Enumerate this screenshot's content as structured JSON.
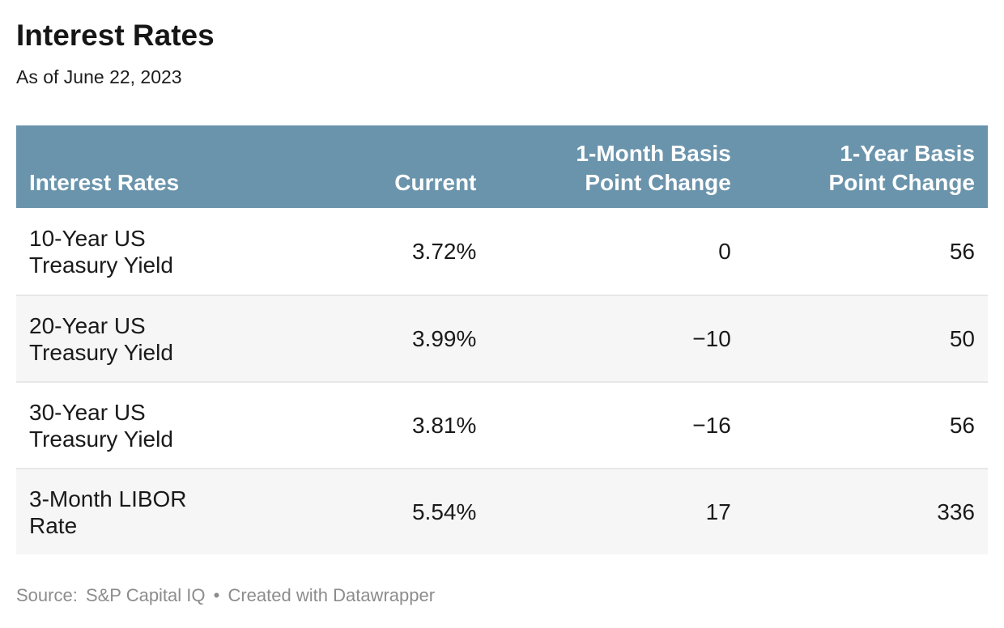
{
  "header": {
    "title": "Interest Rates",
    "subtitle": "As of June 22, 2023"
  },
  "table": {
    "columns": {
      "label": "Interest Rates",
      "current": "Current",
      "change_1m": "1-Month Basis\nPoint Change",
      "change_1y": "1-Year Basis\nPoint Change"
    },
    "rows": [
      {
        "label": "10-Year US\nTreasury Yield",
        "current": "3.72%",
        "change_1m": "0",
        "change_1y": "56"
      },
      {
        "label": "20-Year US\nTreasury Yield",
        "current": "3.99%",
        "change_1m": "−10",
        "change_1y": "50"
      },
      {
        "label": "30-Year US\nTreasury Yield",
        "current": "3.81%",
        "change_1m": "−16",
        "change_1y": "56"
      },
      {
        "label": "3-Month LIBOR\nRate",
        "current": "5.54%",
        "change_1m": "17",
        "change_1y": "336"
      }
    ]
  },
  "footer": {
    "source_label": "Source:",
    "source_name": "S&P Capital IQ",
    "separator": "•",
    "attribution": "Created with Datawrapper"
  },
  "colors": {
    "header_bg": "#6a94ac",
    "header_text": "#ffffff",
    "row_alt_bg": "#f6f6f6",
    "divider": "#e7e7e7",
    "body_text": "#1a1a1a",
    "footer_text": "#8c8c8c"
  },
  "chart_data": {
    "type": "table",
    "title": "Interest Rates",
    "subtitle": "As of June 22, 2023",
    "columns": [
      "Interest Rates",
      "Current",
      "1-Month Basis Point Change",
      "1-Year Basis Point Change"
    ],
    "rows": [
      [
        "10-Year US Treasury Yield",
        "3.72%",
        0,
        56
      ],
      [
        "20-Year US Treasury Yield",
        "3.99%",
        -10,
        50
      ],
      [
        "30-Year US Treasury Yield",
        "3.81%",
        -16,
        56
      ],
      [
        "3-Month LIBOR Rate",
        "5.54%",
        17,
        336
      ]
    ],
    "source": "S&P Capital IQ",
    "attribution": "Created with Datawrapper",
    "layout_hints": {
      "header_fill": "#6a94ac",
      "zebra_striping": true,
      "numeric_columns_right_aligned": true
    }
  }
}
